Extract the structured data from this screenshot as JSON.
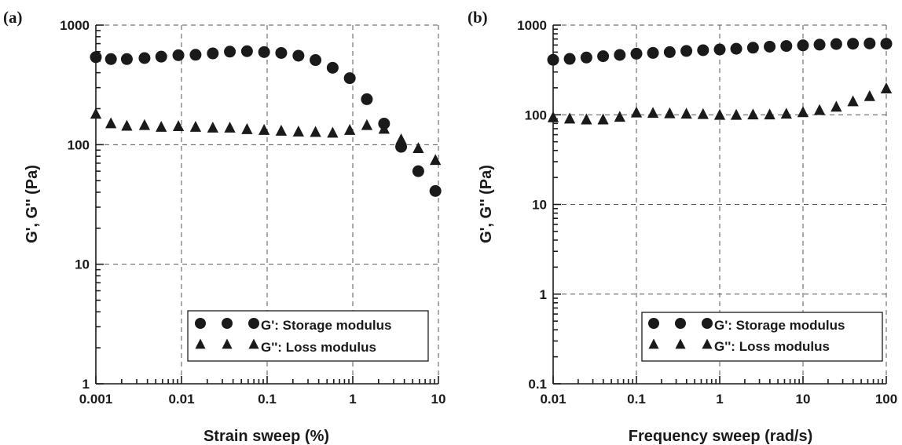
{
  "chart_data": [
    {
      "panel_label": "(a)",
      "type": "scatter",
      "xlabel": "Strain sweep (%)",
      "ylabel": "G',  G'' (Pa)",
      "x_scale": "log",
      "y_scale": "log",
      "xlim": [
        0.001,
        10
      ],
      "ylim": [
        1,
        1000
      ],
      "x_ticks": [
        "0.001",
        "0.01",
        "0.1",
        "1",
        "10"
      ],
      "y_ticks": [
        "1",
        "10",
        "100",
        "1000"
      ],
      "grid": true,
      "legend_position": "lower-right",
      "x": [
        0.001,
        0.0015,
        0.0023,
        0.0037,
        0.0058,
        0.0092,
        0.0146,
        0.0232,
        0.0367,
        0.0582,
        0.0922,
        0.146,
        0.232,
        0.367,
        0.582,
        0.922,
        1.46,
        2.32,
        3.67,
        5.82,
        9.22
      ],
      "series": [
        {
          "name": "G': Storage modulus",
          "marker": "circle",
          "values": [
            540,
            520,
            520,
            530,
            545,
            560,
            565,
            580,
            600,
            605,
            595,
            585,
            555,
            510,
            440,
            360,
            240,
            150,
            96,
            60,
            41
          ]
        },
        {
          "name": "G'': Loss modulus",
          "marker": "triangle",
          "values": [
            180,
            150,
            143,
            145,
            140,
            142,
            140,
            138,
            138,
            134,
            132,
            130,
            128,
            127,
            125,
            132,
            145,
            135,
            110,
            93,
            74
          ]
        }
      ]
    },
    {
      "panel_label": "(b)",
      "type": "scatter",
      "xlabel": "Frequency sweep (rad/s)",
      "ylabel": "G',  G'' (Pa)",
      "x_scale": "log",
      "y_scale": "log",
      "xlim": [
        0.01,
        100
      ],
      "ylim": [
        0.1,
        1000
      ],
      "x_ticks": [
        "0.01",
        "0.1",
        "1",
        "10",
        "100"
      ],
      "y_ticks": [
        "0.1",
        "1",
        "10",
        "100",
        "1000"
      ],
      "grid": true,
      "legend_position": "lower-right",
      "x": [
        0.01,
        0.0158,
        0.0251,
        0.0398,
        0.0631,
        0.1,
        0.158,
        0.251,
        0.398,
        0.631,
        1,
        1.58,
        2.51,
        3.98,
        6.31,
        10,
        15.8,
        25.1,
        39.8,
        63.1,
        100
      ],
      "series": [
        {
          "name": "G': Storage modulus",
          "marker": "circle",
          "values": [
            410,
            420,
            435,
            450,
            465,
            480,
            490,
            500,
            515,
            525,
            535,
            545,
            560,
            575,
            585,
            595,
            605,
            615,
            620,
            625,
            620
          ]
        },
        {
          "name": "G'': Loss modulus",
          "marker": "triangle",
          "values": [
            93,
            90,
            88,
            88,
            94,
            105,
            104,
            103,
            102,
            101,
            99,
            99,
            100,
            100,
            102,
            106,
            112,
            122,
            140,
            160,
            195
          ]
        }
      ]
    }
  ]
}
